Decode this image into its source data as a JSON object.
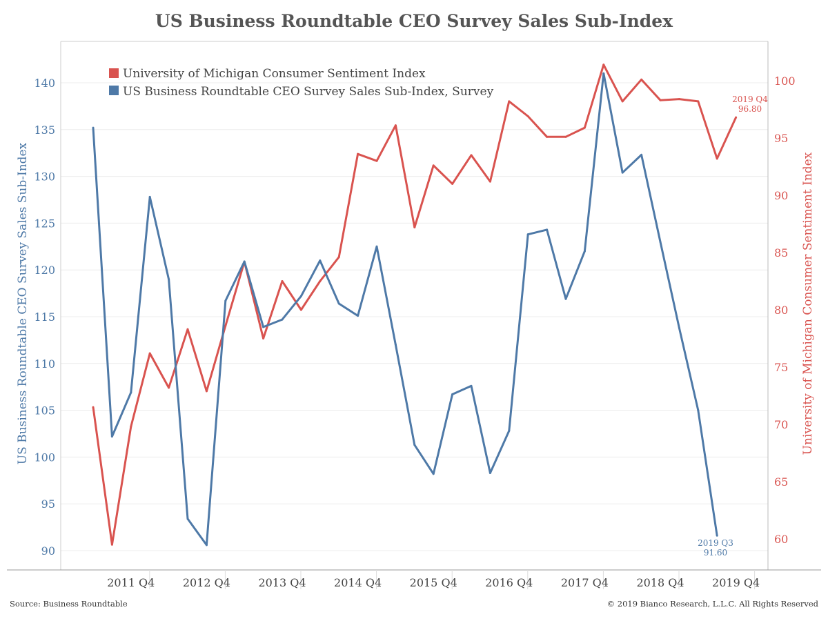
{
  "chart_data": {
    "type": "line",
    "title": "US Business Roundtable CEO Survey Sales Sub-Index",
    "x": [
      "2011 Q2",
      "2011 Q3",
      "2011 Q4",
      "2012 Q1",
      "2012 Q2",
      "2012 Q3",
      "2012 Q4",
      "2013 Q1",
      "2013 Q2",
      "2013 Q3",
      "2013 Q4",
      "2014 Q1",
      "2014 Q2",
      "2014 Q3",
      "2014 Q4",
      "2015 Q1",
      "2015 Q2",
      "2015 Q3",
      "2015 Q4",
      "2016 Q1",
      "2016 Q2",
      "2016 Q3",
      "2016 Q4",
      "2017 Q1",
      "2017 Q2",
      "2017 Q3",
      "2017 Q4",
      "2018 Q1",
      "2018 Q2",
      "2018 Q3",
      "2018 Q4",
      "2019 Q1",
      "2019 Q2",
      "2019 Q3",
      "2019 Q4"
    ],
    "xticks": [
      "2011 Q4",
      "2012 Q4",
      "2013 Q4",
      "2014 Q4",
      "2015 Q4",
      "2016 Q4",
      "2017 Q4",
      "2018 Q4",
      "2019 Q4"
    ],
    "ylabel_left": "US Business Roundtable CEO Survey Sales Sub-Index",
    "ylabel_right": "University of Michigan Consumer Sentiment Index",
    "ylim_left": [
      88,
      143
    ],
    "yticks_left": [
      90,
      95,
      100,
      105,
      110,
      115,
      120,
      125,
      130,
      135,
      140
    ],
    "ylim_right": [
      57.5,
      103.5
    ],
    "yticks_right": [
      60,
      65,
      70,
      75,
      80,
      85,
      90,
      95,
      100
    ],
    "grid": true,
    "legend_position": "top-left",
    "series": [
      {
        "name": "University of Michigan Consumer Sentiment Index",
        "axis": "right",
        "color": "#d9534f",
        "values": [
          71.5,
          59.5,
          69.8,
          76.2,
          73.2,
          78.3,
          72.9,
          78.6,
          84.2,
          77.5,
          82.5,
          80.0,
          82.5,
          84.6,
          93.6,
          93.0,
          96.1,
          87.2,
          92.6,
          91.0,
          93.5,
          91.2,
          98.2,
          96.9,
          95.1,
          95.1,
          95.9,
          101.4,
          98.2,
          100.1,
          98.3,
          98.4,
          98.2,
          93.2,
          96.8
        ]
      },
      {
        "name": "US Business Roundtable CEO Survey Sales Sub-Index, Survey",
        "axis": "left",
        "color": "#4e79a7",
        "values": [
          135.2,
          102.2,
          106.9,
          127.8,
          119.0,
          93.4,
          90.6,
          116.7,
          120.9,
          113.9,
          114.7,
          117.2,
          121.0,
          116.4,
          115.1,
          122.5,
          112.0,
          101.3,
          98.2,
          106.7,
          107.6,
          98.3,
          102.8,
          123.8,
          124.3,
          116.9,
          122.0,
          141.0,
          130.4,
          132.3,
          123.0,
          113.8,
          105.0,
          91.6,
          null
        ]
      }
    ],
    "annotations": [
      {
        "series": 0,
        "period": "2019 Q4",
        "value": "96.80"
      },
      {
        "series": 1,
        "period": "2019 Q3",
        "value": "91.60"
      }
    ]
  },
  "footer": {
    "source": "Source: Business Roundtable",
    "copyright": "© 2019 Bianco Research, L.L.C. All Rights Reserved"
  }
}
